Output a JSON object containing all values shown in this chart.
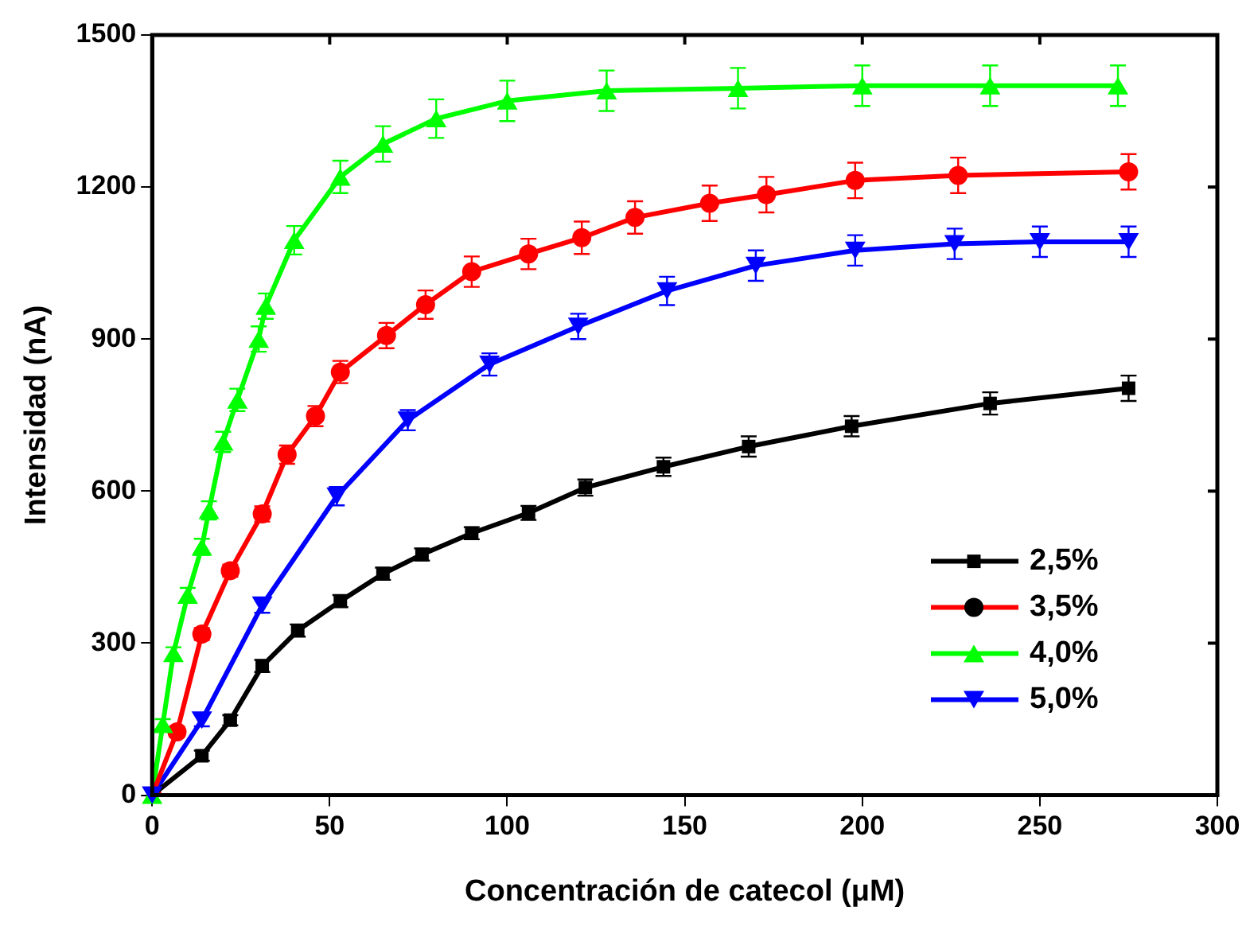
{
  "chart_data": {
    "type": "line",
    "xlabel": "Concentración de catecol (μM)",
    "ylabel": "Intensidad (nA)",
    "xlim": [
      0,
      300
    ],
    "xticks": [
      0,
      50,
      100,
      150,
      200,
      250,
      300
    ],
    "ylim": [
      0,
      1500
    ],
    "yticks": [
      0,
      300,
      600,
      900,
      1200,
      1500
    ],
    "grid": false,
    "legend": "bottom right",
    "line_style": "solid",
    "series": [
      {
        "name": "2,5%",
        "color": "#000000",
        "marker": "square",
        "x": [
          0,
          14,
          22,
          31,
          41,
          53,
          65,
          76,
          90,
          106,
          122,
          144,
          168,
          197,
          236,
          275
        ],
        "values": [
          0,
          78,
          148,
          255,
          325,
          383,
          437,
          475,
          517,
          557,
          607,
          648,
          688,
          728,
          773,
          803
        ],
        "errors": [
          null,
          10,
          10,
          12,
          12,
          12,
          12,
          12,
          12,
          14,
          16,
          18,
          20,
          20,
          22,
          25
        ]
      },
      {
        "name": "3,5%",
        "color": "#ff0000",
        "marker": "circle",
        "x": [
          0,
          7,
          14,
          22,
          31,
          38,
          46,
          53,
          66,
          77,
          90,
          106,
          121,
          136,
          157,
          173,
          198,
          227,
          275
        ],
        "values": [
          0,
          125,
          318,
          443,
          555,
          672,
          748,
          835,
          907,
          968,
          1033,
          1068,
          1100,
          1140,
          1168,
          1185,
          1213,
          1223,
          1230
        ],
        "errors": [
          null,
          10,
          12,
          12,
          15,
          18,
          20,
          22,
          25,
          28,
          30,
          30,
          32,
          32,
          35,
          35,
          35,
          35,
          35
        ]
      },
      {
        "name": "4,0%",
        "color": "#00ff00",
        "marker": "triangle",
        "x": [
          0,
          3,
          6,
          10,
          14,
          16,
          20,
          24,
          30,
          32,
          40,
          53,
          65,
          80,
          100,
          128,
          165,
          200,
          236,
          272
        ],
        "values": [
          0,
          140,
          280,
          395,
          490,
          562,
          697,
          780,
          900,
          965,
          1095,
          1220,
          1285,
          1335,
          1370,
          1390,
          1395,
          1400,
          1400,
          1400
        ],
        "errors": [
          null,
          10,
          12,
          14,
          16,
          18,
          20,
          22,
          25,
          25,
          28,
          32,
          35,
          38,
          40,
          40,
          40,
          40,
          40,
          40
        ]
      },
      {
        "name": "5,0%",
        "color": "#0000ff",
        "marker": "triangle-down",
        "x": [
          0,
          14,
          31,
          52,
          72,
          95,
          120,
          145,
          170,
          198,
          226,
          250,
          275
        ],
        "values": [
          0,
          148,
          375,
          590,
          740,
          850,
          925,
          995,
          1045,
          1075,
          1088,
          1092,
          1092
        ],
        "errors": [
          null,
          12,
          15,
          18,
          20,
          22,
          25,
          28,
          30,
          30,
          30,
          30,
          30
        ]
      }
    ]
  }
}
